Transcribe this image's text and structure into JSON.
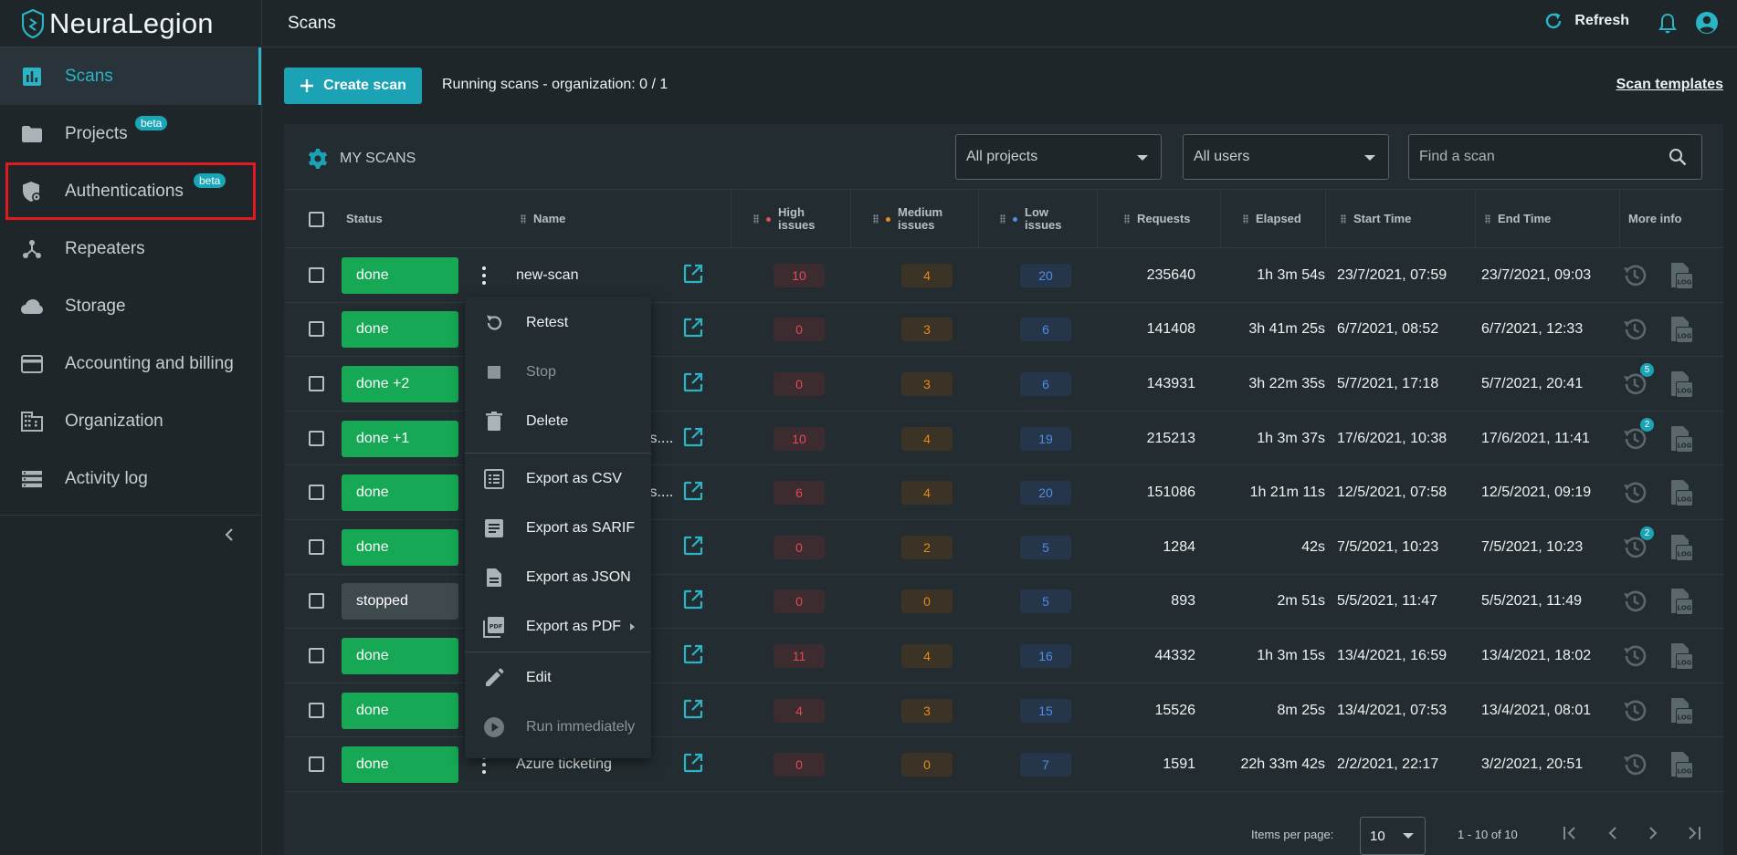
{
  "app": {
    "name": "NeuraLegion"
  },
  "sidebar": {
    "items": [
      {
        "label": "Scans",
        "icon": "chart-icon",
        "active": true
      },
      {
        "label": "Projects",
        "icon": "folder-icon",
        "badge": "beta"
      },
      {
        "label": "Authentications",
        "icon": "shield-lock-icon",
        "badge": "beta"
      },
      {
        "label": "Repeaters",
        "icon": "hub-icon"
      },
      {
        "label": "Storage",
        "icon": "cloud-icon"
      },
      {
        "label": "Accounting and billing",
        "icon": "credit-card-icon"
      },
      {
        "label": "Organization",
        "icon": "building-icon"
      },
      {
        "label": "Activity log",
        "icon": "list-icon"
      }
    ]
  },
  "topbar": {
    "title": "Scans",
    "refresh_label": "Refresh"
  },
  "actions": {
    "create_label": "Create scan",
    "running_text": "Running scans - organization: 0 / 1",
    "templates_label": "Scan templates"
  },
  "panel": {
    "title": "MY SCANS",
    "projects_filter": "All projects",
    "users_filter": "All users",
    "search_placeholder": "Find a scan"
  },
  "table": {
    "headers": {
      "status": "Status",
      "name": "Name",
      "high": "High issues",
      "medium": "Medium issues",
      "low": "Low issues",
      "requests": "Requests",
      "elapsed": "Elapsed",
      "start": "Start Time",
      "end": "End Time",
      "more": "More info"
    },
    "rows": [
      {
        "status": "done",
        "name": "new-scan",
        "high": "10",
        "medium": "4",
        "low": "20",
        "requests": "235640",
        "elapsed": "1h 3m 54s",
        "start": "23/7/2021, 07:59",
        "end": "23/7/2021, 09:03",
        "history_badge": ""
      },
      {
        "status": "done",
        "name": "",
        "high": "0",
        "medium": "3",
        "low": "6",
        "requests": "141408",
        "elapsed": "3h 41m 25s",
        "start": "6/7/2021, 08:52",
        "end": "6/7/2021, 12:33",
        "history_badge": ""
      },
      {
        "status": "done +2",
        "name": "",
        "high": "0",
        "medium": "3",
        "low": "6",
        "requests": "143931",
        "elapsed": "3h 22m 35s",
        "start": "5/7/2021, 17:18",
        "end": "5/7/2021, 20:41",
        "history_badge": "5"
      },
      {
        "status": "done +1",
        "name": "ls....",
        "high": "10",
        "medium": "4",
        "low": "19",
        "requests": "215213",
        "elapsed": "1h 3m 37s",
        "start": "17/6/2021, 10:38",
        "end": "17/6/2021, 11:41",
        "history_badge": "2"
      },
      {
        "status": "done",
        "name": "ls....",
        "high": "6",
        "medium": "4",
        "low": "20",
        "requests": "151086",
        "elapsed": "1h 21m 11s",
        "start": "12/5/2021, 07:58",
        "end": "12/5/2021, 09:19",
        "history_badge": ""
      },
      {
        "status": "done",
        "name": "",
        "high": "0",
        "medium": "2",
        "low": "5",
        "requests": "1284",
        "elapsed": "42s",
        "start": "7/5/2021, 10:23",
        "end": "7/5/2021, 10:23",
        "history_badge": "2"
      },
      {
        "status": "stopped",
        "name": "",
        "high": "0",
        "medium": "0",
        "low": "5",
        "requests": "893",
        "elapsed": "2m 51s",
        "start": "5/5/2021, 11:47",
        "end": "5/5/2021, 11:49",
        "history_badge": ""
      },
      {
        "status": "done",
        "name": "",
        "high": "11",
        "medium": "4",
        "low": "16",
        "requests": "44332",
        "elapsed": "1h 3m 15s",
        "start": "13/4/2021, 16:59",
        "end": "13/4/2021, 18:02",
        "history_badge": ""
      },
      {
        "status": "done",
        "name": "",
        "high": "4",
        "medium": "3",
        "low": "15",
        "requests": "15526",
        "elapsed": "8m 25s",
        "start": "13/4/2021, 07:53",
        "end": "13/4/2021, 08:01",
        "history_badge": ""
      },
      {
        "status": "done",
        "name": "Azure ticketing",
        "high": "0",
        "medium": "0",
        "low": "7",
        "requests": "1591",
        "elapsed": "22h 33m 42s",
        "start": "2/2/2021, 22:17",
        "end": "3/2/2021, 20:51",
        "history_badge": ""
      }
    ]
  },
  "context_menu": {
    "items": [
      {
        "label": "Retest",
        "icon": "retest-icon",
        "disabled": false
      },
      {
        "label": "Stop",
        "icon": "stop-icon",
        "disabled": true
      },
      {
        "label": "Delete",
        "icon": "trash-icon",
        "disabled": false
      },
      {
        "label": "Export as CSV",
        "icon": "csv-icon",
        "disabled": false
      },
      {
        "label": "Export as SARIF",
        "icon": "sarif-icon",
        "disabled": false
      },
      {
        "label": "Export as JSON",
        "icon": "json-icon",
        "disabled": false
      },
      {
        "label": "Export as PDF",
        "icon": "pdf-icon",
        "disabled": false
      },
      {
        "label": "Edit",
        "icon": "pencil-icon",
        "disabled": false
      },
      {
        "label": "Run immediately",
        "icon": "play-icon",
        "disabled": true
      }
    ]
  },
  "pagination": {
    "items_per_page_label": "Items per page:",
    "items_per_page": "10",
    "range": "1 - 10 of 10"
  },
  "colors": {
    "accent": "#1ba3b5",
    "done": "#16a854",
    "high": "#e34a57",
    "medium": "#e88a1a",
    "low": "#4f8de6"
  }
}
